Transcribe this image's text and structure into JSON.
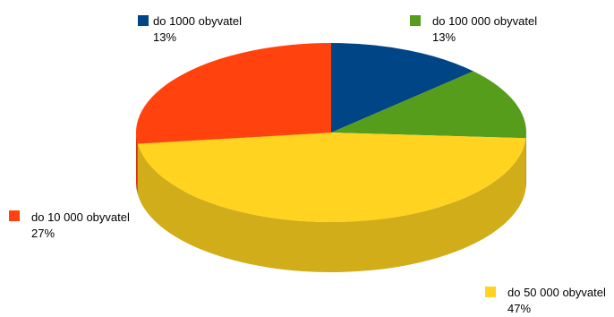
{
  "chart_data": {
    "type": "pie",
    "style": "3d-exploded-none",
    "categories": [
      "do 1000 obyvatel",
      "do 100 000 obyvatel",
      "do 50 000 obyvatel",
      "do 10 000 obyvatel"
    ],
    "values": [
      13,
      13,
      47,
      27
    ],
    "value_labels": [
      "13%",
      "13%",
      "47%",
      "27%"
    ],
    "colors": [
      "#004586",
      "#579d1c",
      "#ffd320",
      "#ff420e"
    ],
    "legend": "labels-beside-slices"
  }
}
